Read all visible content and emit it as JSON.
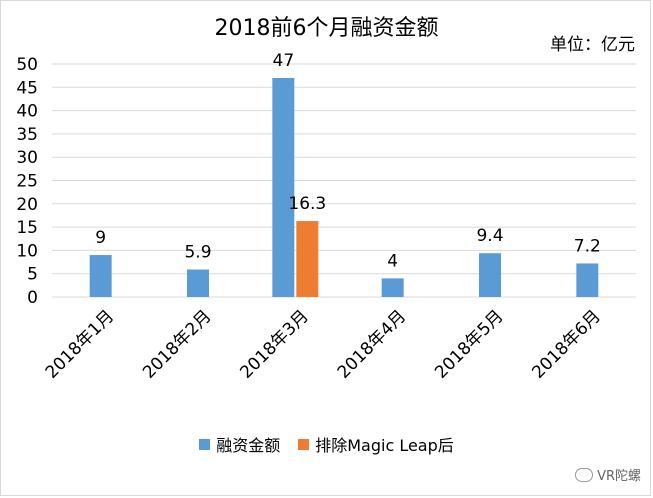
{
  "title": "2018前6个月融资金额",
  "unit_label": "单位：亿元",
  "watermark": "VR陀螺",
  "colors": {
    "series1": "#5b9bd5",
    "series2": "#ed7d31",
    "grid": "#d9d9d9"
  },
  "chart_data": {
    "type": "bar",
    "title": "2018前6个月融资金额",
    "categories": [
      "2018年1月",
      "2018年2月",
      "2018年3月",
      "2018年4月",
      "2018年5月",
      "2018年6月"
    ],
    "series": [
      {
        "name": "融资金额",
        "values": [
          9,
          5.9,
          47,
          4,
          9.4,
          7.2
        ]
      },
      {
        "name": "排除Magic Leap后",
        "values": [
          null,
          null,
          16.3,
          null,
          null,
          null
        ]
      }
    ],
    "data_labels": [
      [
        "9",
        "5.9",
        "47",
        "4",
        "9.4",
        "7.2"
      ],
      [
        null,
        null,
        "16.3",
        null,
        null,
        null
      ]
    ],
    "yticks": [
      0,
      5,
      10,
      15,
      20,
      25,
      30,
      35,
      40,
      45,
      50
    ],
    "ylim": [
      0,
      50
    ],
    "grid": true,
    "legend_position": "bottom"
  }
}
